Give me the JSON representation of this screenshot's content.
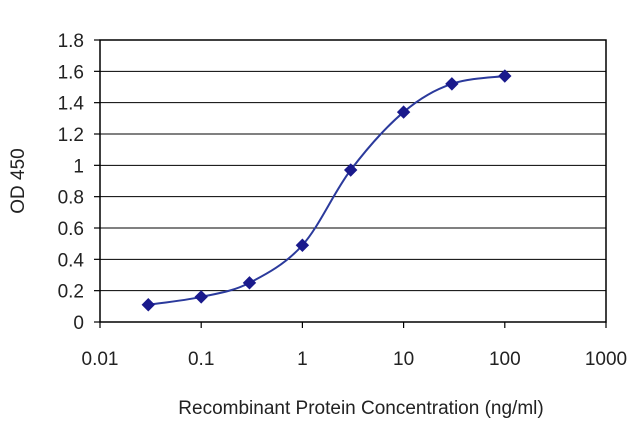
{
  "chart_data": {
    "type": "line",
    "title": "",
    "xlabel": "Recombinant Protein Concentration (ng/ml)",
    "ylabel": "OD 450",
    "x_scale": "log",
    "xlim": [
      0.01,
      1000
    ],
    "ylim": [
      0,
      1.8
    ],
    "x_ticks": [
      0.01,
      0.1,
      1,
      10,
      100,
      1000
    ],
    "x_tick_labels": [
      "0.01",
      "0.1",
      "1",
      "10",
      "100",
      "1000"
    ],
    "y_ticks": [
      0,
      0.2,
      0.4,
      0.6,
      0.8,
      1,
      1.2,
      1.4,
      1.6,
      1.8
    ],
    "y_tick_labels": [
      "0",
      "0.2",
      "0.4",
      "0.6",
      "0.8",
      "1",
      "1.2",
      "1.4",
      "1.6",
      "1.8"
    ],
    "grid": "horizontal",
    "legend": "none",
    "series": [
      {
        "x": [
          0.03,
          0.1,
          0.3,
          1,
          3,
          10,
          30,
          100
        ],
        "y": [
          0.11,
          0.16,
          0.25,
          0.49,
          0.97,
          1.34,
          1.52,
          1.57
        ],
        "color": "#2b3a9c",
        "marker": "diamond",
        "marker_color": "#1a1a8c"
      }
    ]
  }
}
